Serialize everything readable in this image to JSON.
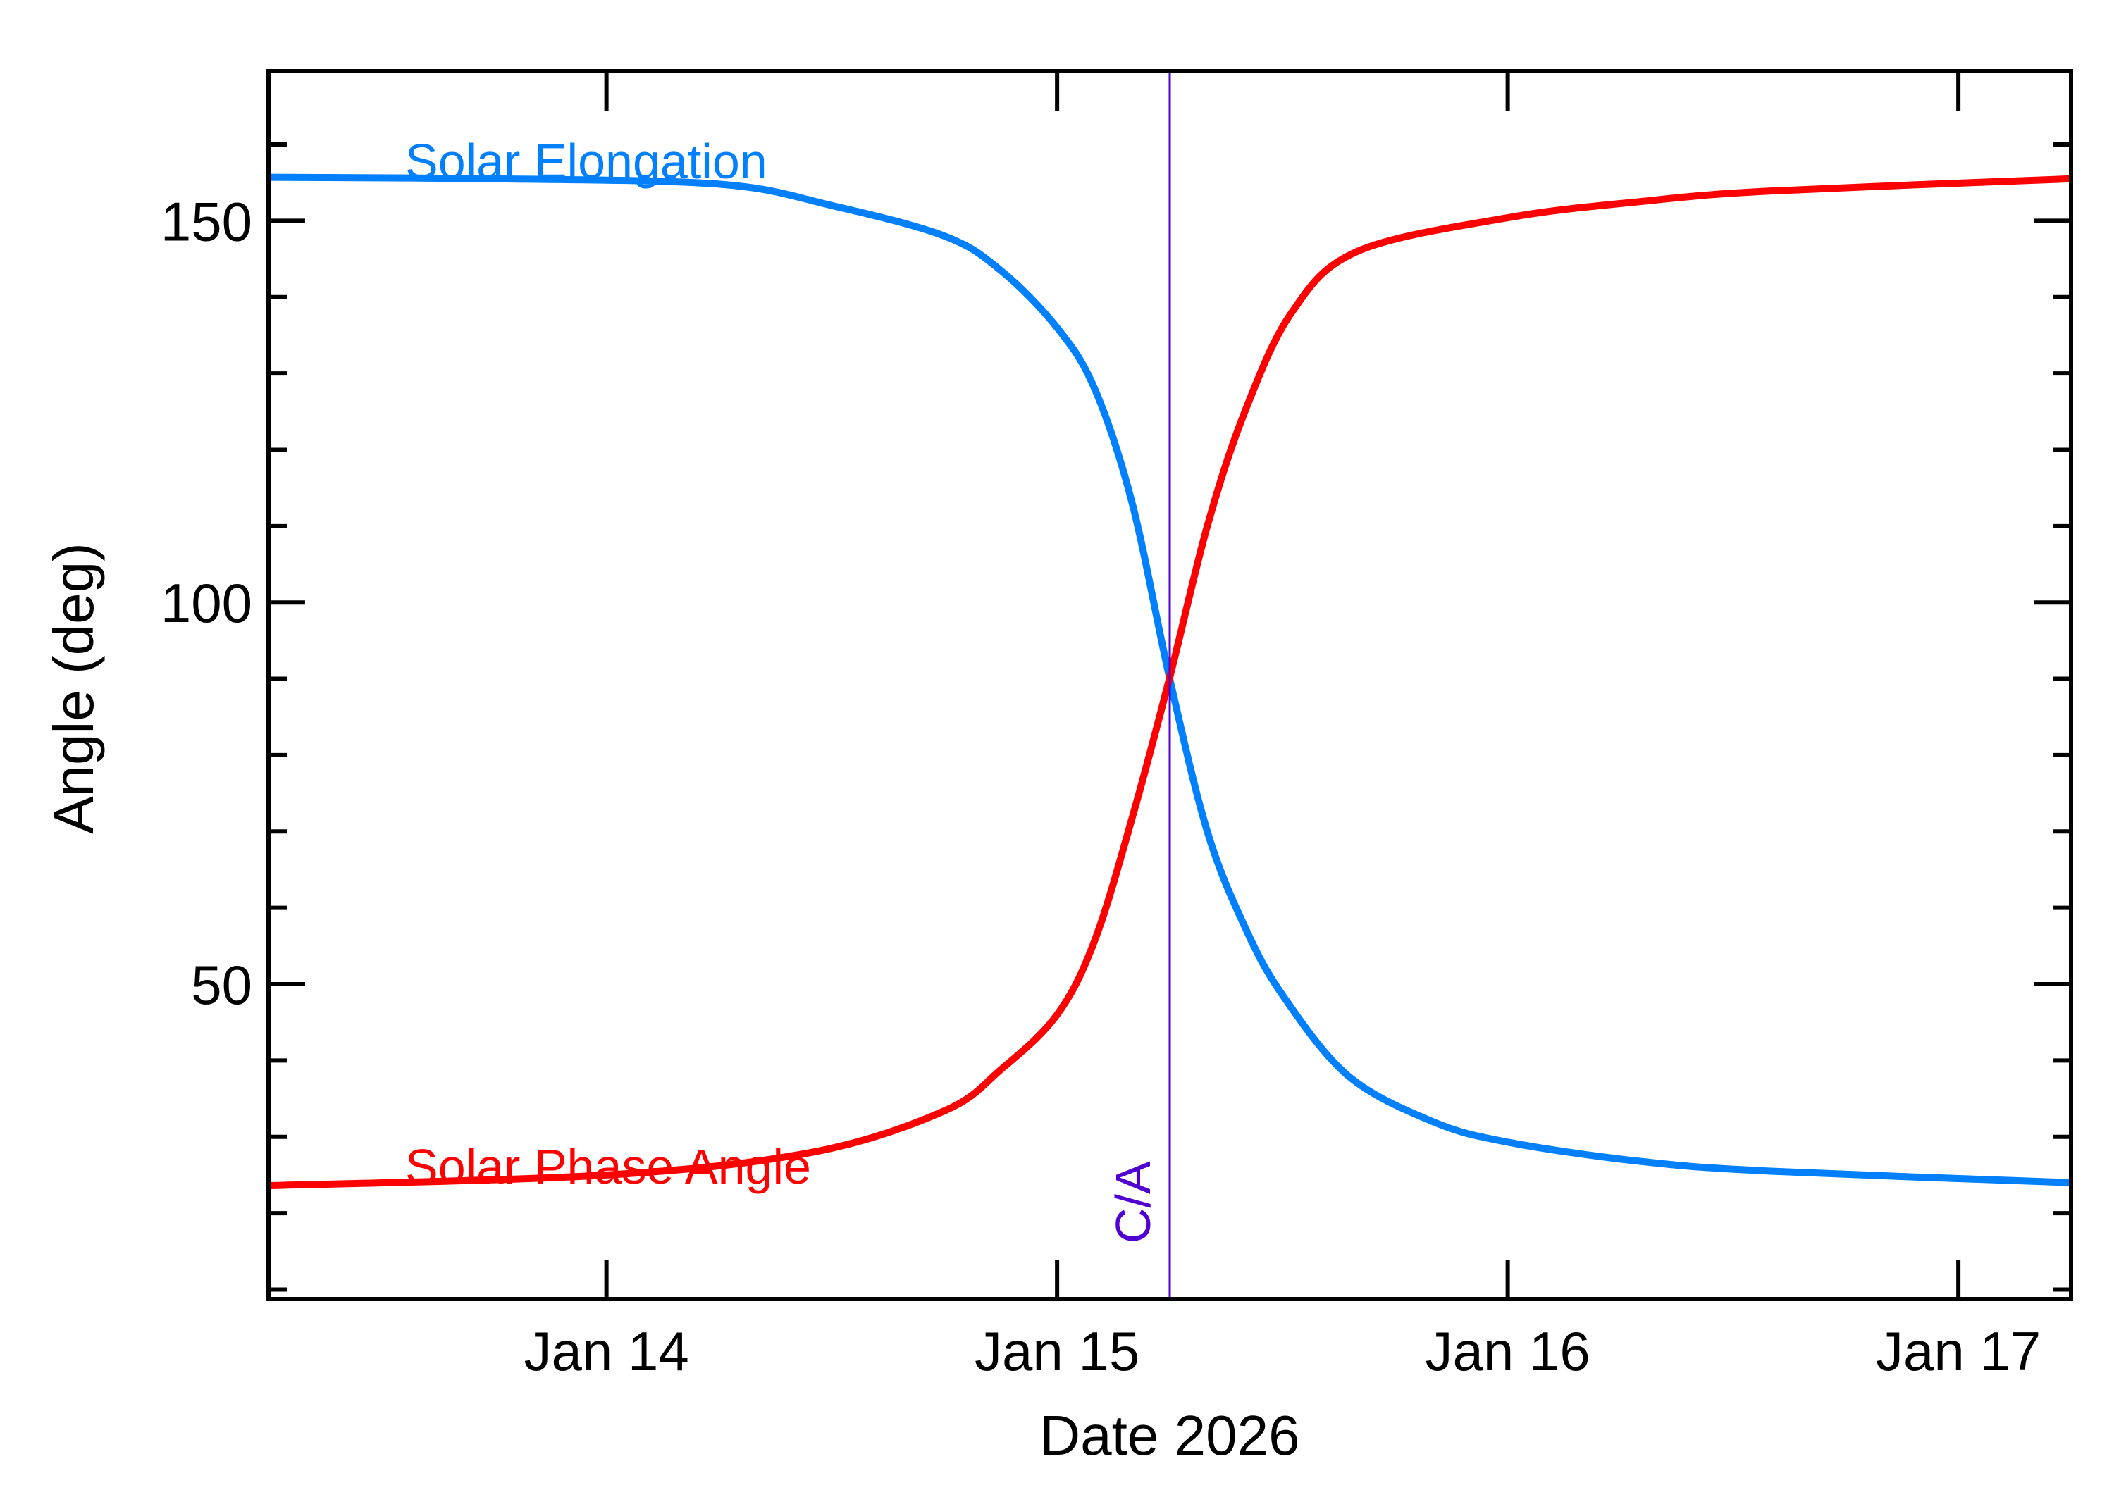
{
  "chart_data": {
    "type": "line",
    "title": "",
    "xlabel": "Date 2026",
    "ylabel": "Angle (deg)",
    "xlim": [
      "2026-01-13T06:00",
      "2026-01-17T06:00"
    ],
    "ylim": [
      8.75,
      169.6
    ],
    "x_ticks": [
      {
        "date": "2026-01-14T00:00",
        "label": "Jan 14"
      },
      {
        "date": "2026-01-15T00:00",
        "label": "Jan 15"
      },
      {
        "date": "2026-01-16T00:00",
        "label": "Jan 16"
      },
      {
        "date": "2026-01-17T00:00",
        "label": "Jan 17"
      }
    ],
    "y_ticks": [
      {
        "value": 50,
        "label": "50"
      },
      {
        "value": 100,
        "label": "100"
      },
      {
        "value": 150,
        "label": "150"
      }
    ],
    "y_minor_step": 10,
    "grid": false,
    "legend": "inline labels",
    "annotation": {
      "label": "C/A",
      "date": "2026-01-15T06:00",
      "color": "#5000d0"
    },
    "series": [
      {
        "name": "Solar Elongation",
        "color": "#0080ff",
        "points": [
          [
            "2026-01-13T06:00",
            155.7
          ],
          [
            "2026-01-13T18:00",
            155.5
          ],
          [
            "2026-01-14T06:00",
            154.8
          ],
          [
            "2026-01-14T12:00",
            152.0
          ],
          [
            "2026-01-14T18:00",
            148.0
          ],
          [
            "2026-01-14T21:00",
            143.5
          ],
          [
            "2026-01-15T00:00",
            136.0
          ],
          [
            "2026-01-15T02:00",
            128.0
          ],
          [
            "2026-01-15T04:00",
            113.0
          ],
          [
            "2026-01-15T06:00",
            90.0
          ],
          [
            "2026-01-15T08:00",
            70.0
          ],
          [
            "2026-01-15T10:00",
            57.5
          ],
          [
            "2026-01-15T12:00",
            48.6
          ],
          [
            "2026-01-15T15:30",
            38.0
          ],
          [
            "2026-01-15T20:00",
            32.0
          ],
          [
            "2026-01-16T00:00",
            29.3
          ],
          [
            "2026-01-16T07:00",
            26.8
          ],
          [
            "2026-01-16T14:00",
            25.5
          ],
          [
            "2026-01-17T06:00",
            24.0
          ]
        ]
      },
      {
        "name": "Solar Phase Angle",
        "color": "#ff0000",
        "points": [
          [
            "2026-01-13T06:00",
            23.6
          ],
          [
            "2026-01-14T00:00",
            25.0
          ],
          [
            "2026-01-14T11:00",
            28.0
          ],
          [
            "2026-01-14T18:00",
            33.4
          ],
          [
            "2026-01-14T21:00",
            38.8
          ],
          [
            "2026-01-15T00:00",
            46.0
          ],
          [
            "2026-01-15T02:00",
            55.7
          ],
          [
            "2026-01-15T04:00",
            71.8
          ],
          [
            "2026-01-15T06:00",
            90.2
          ],
          [
            "2026-01-15T08:00",
            110.0
          ],
          [
            "2026-01-15T10:00",
            125.0
          ],
          [
            "2026-01-15T12:30",
            138.0
          ],
          [
            "2026-01-15T16:00",
            146.0
          ],
          [
            "2026-01-16T00:00",
            150.4
          ],
          [
            "2026-01-16T07:00",
            152.5
          ],
          [
            "2026-01-16T14:00",
            153.9
          ],
          [
            "2026-01-17T06:00",
            155.5
          ]
        ]
      }
    ]
  }
}
